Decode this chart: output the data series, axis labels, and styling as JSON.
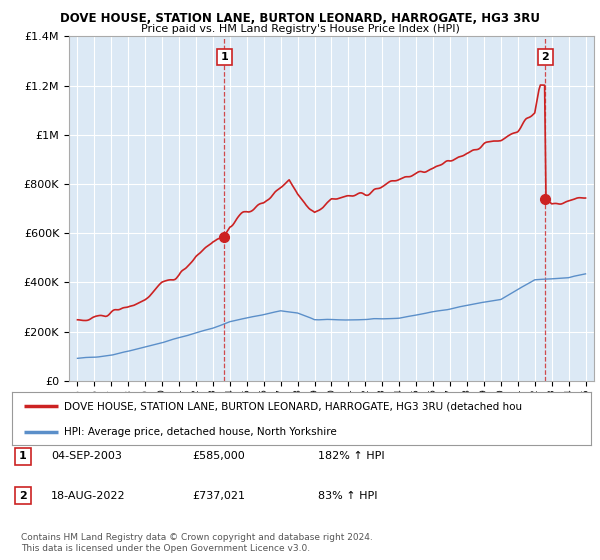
{
  "title": "DOVE HOUSE, STATION LANE, BURTON LEONARD, HARROGATE, HG3 3RU",
  "subtitle": "Price paid vs. HM Land Registry's House Price Index (HPI)",
  "background_color": "#ffffff",
  "plot_bg_color": "#dce9f5",
  "grid_color": "#ffffff",
  "hpi_color": "#5b8fc9",
  "price_color": "#cc2222",
  "marker1_x": 2003.67,
  "marker1_y": 585000,
  "marker2_x": 2022.63,
  "marker2_y": 737021,
  "legend_entries": [
    "DOVE HOUSE, STATION LANE, BURTON LEONARD, HARROGATE, HG3 3RU (detached hou",
    "HPI: Average price, detached house, North Yorkshire"
  ],
  "table_rows": [
    [
      "1",
      "04-SEP-2003",
      "£585,000",
      "182% ↑ HPI"
    ],
    [
      "2",
      "18-AUG-2022",
      "£737,021",
      "83% ↑ HPI"
    ]
  ],
  "footnote": "Contains HM Land Registry data © Crown copyright and database right 2024.\nThis data is licensed under the Open Government Licence v3.0.",
  "ylim": [
    0,
    1400000
  ],
  "xlim": [
    1994.5,
    2025.5
  ]
}
